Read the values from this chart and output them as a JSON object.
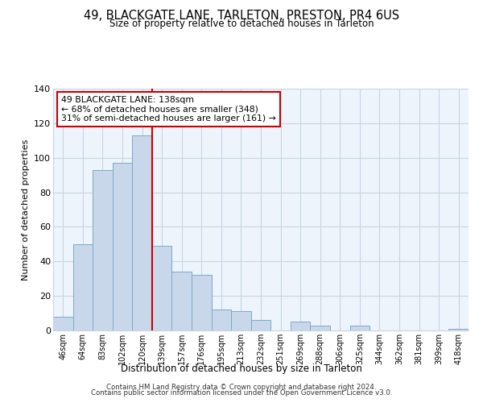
{
  "title": "49, BLACKGATE LANE, TARLETON, PRESTON, PR4 6US",
  "subtitle": "Size of property relative to detached houses in Tarleton",
  "xlabel": "Distribution of detached houses by size in Tarleton",
  "ylabel": "Number of detached properties",
  "bar_labels": [
    "46sqm",
    "64sqm",
    "83sqm",
    "102sqm",
    "120sqm",
    "139sqm",
    "157sqm",
    "176sqm",
    "195sqm",
    "213sqm",
    "232sqm",
    "251sqm",
    "269sqm",
    "288sqm",
    "306sqm",
    "325sqm",
    "344sqm",
    "362sqm",
    "381sqm",
    "399sqm",
    "418sqm"
  ],
  "bar_heights": [
    8,
    50,
    93,
    97,
    113,
    49,
    34,
    32,
    12,
    11,
    6,
    0,
    5,
    3,
    0,
    3,
    0,
    0,
    0,
    0,
    1
  ],
  "bar_color": "#c8d8ea",
  "bar_edge_color": "#7da8c8",
  "vline_index": 5,
  "vline_color": "#cc0000",
  "ylim": [
    0,
    140
  ],
  "yticks": [
    0,
    20,
    40,
    60,
    80,
    100,
    120,
    140
  ],
  "annotation_title": "49 BLACKGATE LANE: 138sqm",
  "annotation_line1": "← 68% of detached houses are smaller (348)",
  "annotation_line2": "31% of semi-detached houses are larger (161) →",
  "annotation_box_color": "#ffffff",
  "annotation_box_edge": "#cc0000",
  "footer1": "Contains HM Land Registry data © Crown copyright and database right 2024.",
  "footer2": "Contains public sector information licensed under the Open Government Licence v3.0.",
  "background_color": "#ffffff",
  "plot_bg_color": "#eef4fb",
  "grid_color": "#c5d5e5"
}
